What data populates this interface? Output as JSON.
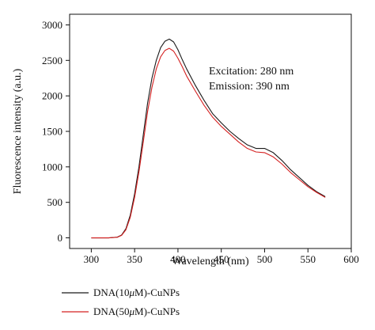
{
  "chart_data": {
    "type": "line",
    "xlabel": "Wavelength (nm)",
    "ylabel": "Fluorescence intensity (a.u.)",
    "xlim": [
      275,
      600
    ],
    "ylim": [
      -150,
      3150
    ],
    "xticks": [
      300,
      350,
      400,
      450,
      500,
      550,
      600
    ],
    "yticks": [
      0,
      500,
      1000,
      1500,
      2000,
      2500,
      3000
    ],
    "grid": false,
    "annotations": [
      "Excitation: 280 nm",
      "Emission: 390 nm"
    ],
    "legend_position": "bottom-left",
    "series": [
      {
        "name_prefix": "DNA(10",
        "name_mu": "μ",
        "name_suffix": "M)-CuNPs",
        "color": "#1a1a1a",
        "x": [
          300,
          320,
          330,
          335,
          340,
          345,
          350,
          355,
          360,
          365,
          370,
          375,
          380,
          385,
          390,
          395,
          400,
          405,
          410,
          420,
          430,
          440,
          450,
          460,
          470,
          480,
          490,
          500,
          510,
          520,
          530,
          540,
          550,
          560,
          570
        ],
        "y": [
          0,
          0,
          10,
          40,
          130,
          320,
          620,
          1000,
          1450,
          1900,
          2250,
          2500,
          2680,
          2770,
          2800,
          2760,
          2650,
          2510,
          2380,
          2150,
          1940,
          1750,
          1620,
          1500,
          1400,
          1310,
          1260,
          1260,
          1200,
          1090,
          960,
          850,
          740,
          650,
          580
        ]
      },
      {
        "name_prefix": "DNA(50",
        "name_mu": "μ",
        "name_suffix": "M)-CuNPs",
        "color": "#d42020",
        "x": [
          300,
          320,
          330,
          335,
          340,
          345,
          350,
          355,
          360,
          365,
          370,
          375,
          380,
          385,
          390,
          395,
          400,
          405,
          410,
          420,
          430,
          440,
          450,
          460,
          470,
          480,
          490,
          500,
          510,
          520,
          530,
          540,
          550,
          560,
          570
        ],
        "y": [
          0,
          0,
          8,
          35,
          115,
          290,
          570,
          930,
          1350,
          1780,
          2120,
          2380,
          2550,
          2640,
          2670,
          2630,
          2530,
          2410,
          2280,
          2070,
          1870,
          1700,
          1570,
          1460,
          1350,
          1260,
          1210,
          1200,
          1140,
          1040,
          920,
          820,
          720,
          640,
          570
        ]
      }
    ]
  }
}
